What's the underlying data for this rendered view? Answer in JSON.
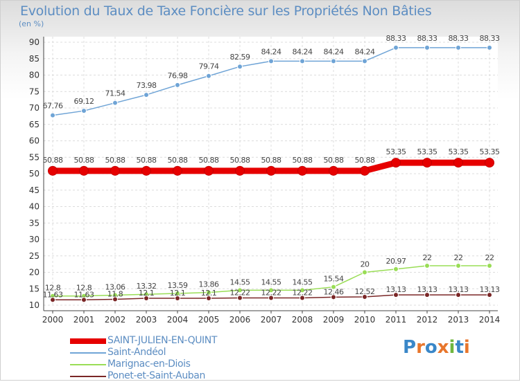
{
  "chart_data": {
    "type": "line",
    "title": "Evolution du Taux de Taxe Foncière sur les Propriétés Non Bâties",
    "ylabel": "(en %)",
    "xlabel": "",
    "categories": [
      "2000",
      "2001",
      "2002",
      "2003",
      "2004",
      "2005",
      "2006",
      "2007",
      "2008",
      "2009",
      "2010",
      "2011",
      "2012",
      "2013",
      "2014"
    ],
    "yticks": [
      "10",
      "15",
      "20",
      "25",
      "30",
      "35",
      "40",
      "45",
      "50",
      "55",
      "60",
      "65",
      "70",
      "75",
      "80",
      "85",
      "90"
    ],
    "ylim": [
      10,
      90
    ],
    "grid": true,
    "series": [
      {
        "name": "SAINT-JULIEN-EN-QUINT",
        "color": "#e60000",
        "width": 9,
        "values": [
          50.88,
          50.88,
          50.88,
          50.88,
          50.88,
          50.88,
          50.88,
          50.88,
          50.88,
          50.88,
          50.88,
          53.35,
          53.35,
          53.35,
          53.35
        ],
        "labels": [
          "50.88",
          "50.88",
          "50.88",
          "50.88",
          "50.88",
          "50.88",
          "50.88",
          "50.88",
          "50.88",
          "50.88",
          "50.88",
          "53.35",
          "53.35",
          "53.35",
          "53.35"
        ]
      },
      {
        "name": "Saint-Andéol",
        "color": "#6fa4d6",
        "width": 1.5,
        "values": [
          67.76,
          69.12,
          71.54,
          73.98,
          76.98,
          79.74,
          82.59,
          84.24,
          84.24,
          84.24,
          84.24,
          88.33,
          88.33,
          88.33,
          88.33
        ],
        "labels": [
          "67.76",
          "69.12",
          "71.54",
          "73.98",
          "76.98",
          "79.74",
          "82.59",
          "84.24",
          "84.24",
          "84.24",
          "84.24",
          "88.33",
          "88.33",
          "88.33",
          "88.33"
        ]
      },
      {
        "name": "Marignac-en-Diois",
        "color": "#99dd55",
        "width": 1.5,
        "values": [
          12.8,
          12.8,
          13.06,
          13.32,
          13.59,
          13.86,
          14.55,
          14.55,
          14.55,
          15.54,
          20,
          20.97,
          22,
          22,
          22
        ],
        "labels": [
          "12.8",
          "12.8",
          "13.06",
          "13.32",
          "13.59",
          "13.86",
          "14.55",
          "14.55",
          "14.55",
          "15.54",
          "20",
          "20.97",
          "22",
          "22",
          "22"
        ]
      },
      {
        "name": "Ponet-et-Saint-Auban",
        "color": "#7a2626",
        "width": 1.5,
        "values": [
          11.63,
          11.63,
          11.8,
          12.1,
          12.1,
          12.1,
          12.22,
          12.22,
          12.22,
          12.46,
          12.52,
          13.13,
          13.13,
          13.13,
          13.13
        ],
        "labels": [
          "11.63",
          "11.63",
          "11.8",
          "12.1",
          "12.1",
          "12.1",
          "12.22",
          "12.22",
          "12.22",
          "12.46",
          "12.52",
          "13.13",
          "13.13",
          "13.13",
          "13.13"
        ]
      }
    ],
    "legend_position": "bottom-left"
  },
  "logo": {
    "letters": [
      "P",
      "r",
      "o",
      "x",
      "i",
      "t",
      "i"
    ],
    "colors": [
      "#3a87c8",
      "#e8762c",
      "#3a87c8",
      "#e8762c",
      "#6fb63e",
      "#3a87c8",
      "#e8762c"
    ]
  }
}
